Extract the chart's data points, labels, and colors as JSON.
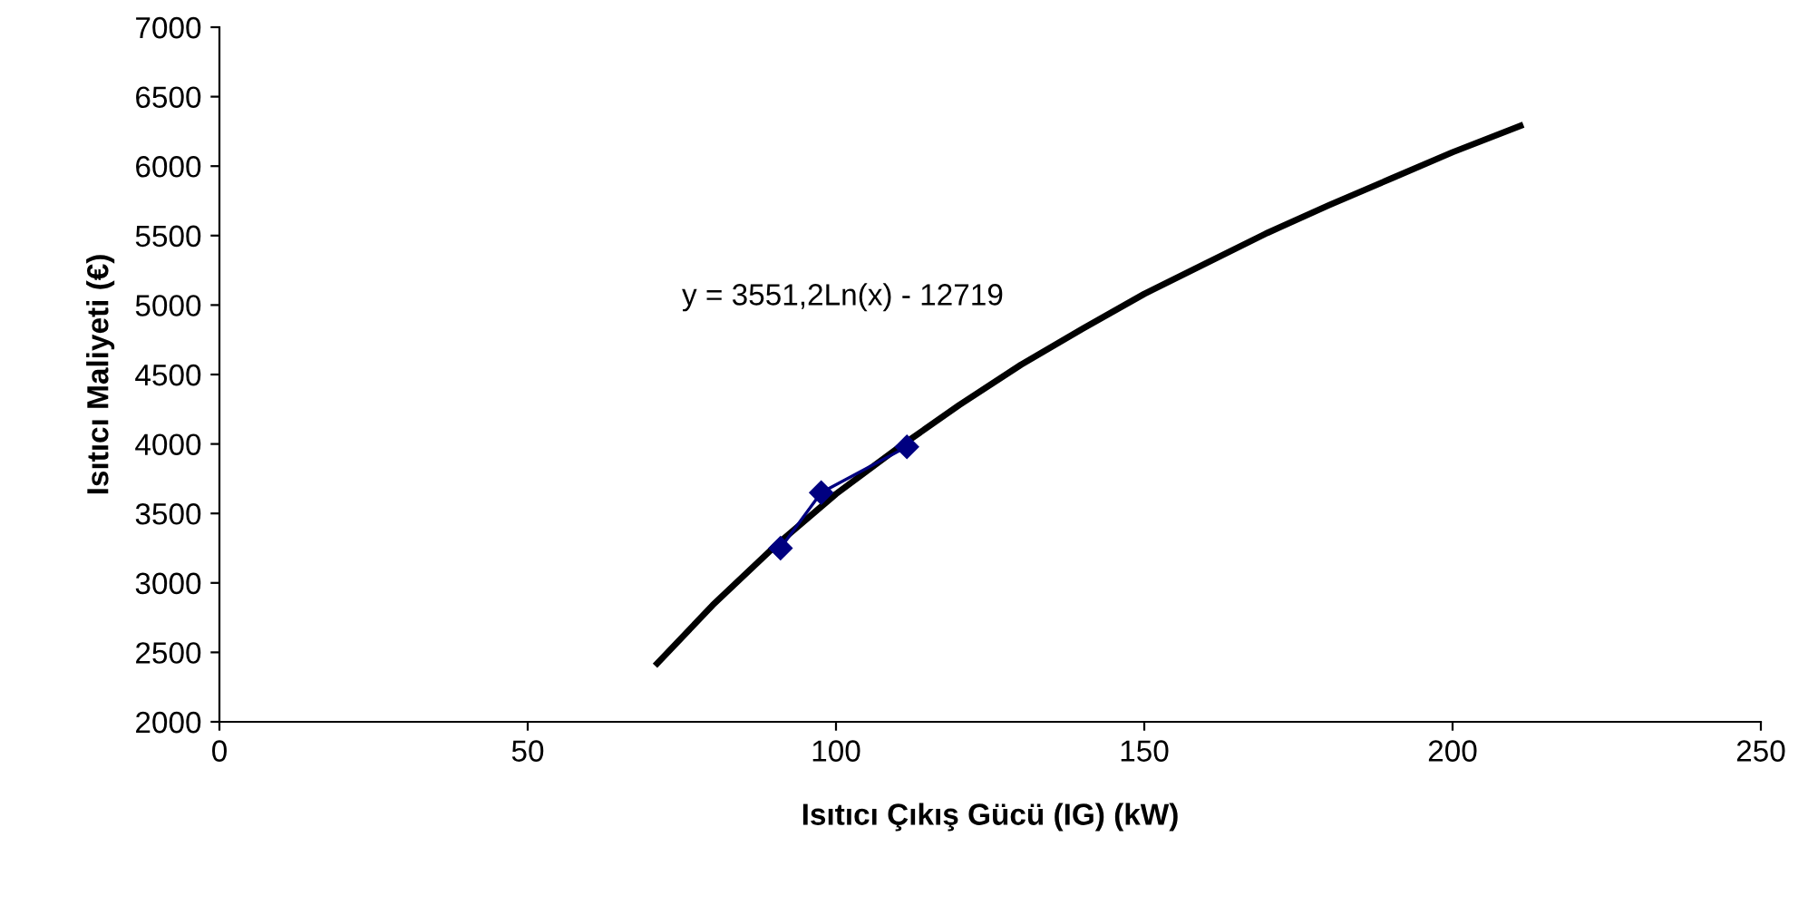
{
  "chart_data": {
    "type": "line",
    "xlabel": "Isıtıcı Çıkış Gücü (IG) (kW)",
    "ylabel": "Isıtıcı Maliyeti (€)",
    "xlim": [
      0,
      250
    ],
    "xticks": [
      0,
      50,
      100,
      150,
      200,
      250
    ],
    "ylim": [
      2000,
      7000
    ],
    "yticks": [
      2000,
      2500,
      3000,
      3500,
      4000,
      4500,
      5000,
      5500,
      6000,
      6500,
      7000
    ],
    "grid": false,
    "legend": false,
    "series": [
      {
        "color": "#000080",
        "marker": "diamond",
        "line_style": "solid",
        "x": [
          91,
          97.6,
          111.5
        ],
        "values": [
          3250,
          3650,
          3980
        ]
      },
      {
        "color": "#000000",
        "marker": "none",
        "line_style": "solid",
        "x": [
          71,
          80,
          90,
          100,
          110,
          120,
          130,
          140,
          150,
          160,
          170,
          180,
          190,
          200,
          211
        ],
        "values": [
          2420,
          2840,
          3260,
          3640,
          3970,
          4280,
          4570,
          4830,
          5080,
          5300,
          5520,
          5720,
          5910,
          6100,
          6290
        ]
      }
    ],
    "annotations": [
      "y = 3551,2Ln(x) - 12719"
    ]
  }
}
